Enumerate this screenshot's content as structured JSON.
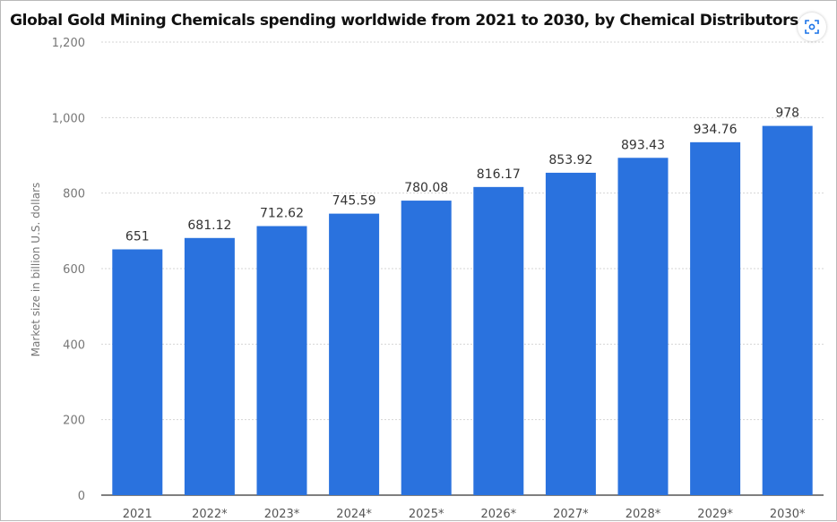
{
  "chart_data": {
    "type": "bar",
    "title": "Global Gold Mining Chemicals spending worldwide from 2021 to 2030, by Chemical Distributors",
    "xlabel": "",
    "ylabel": "Market size in billion U.S. dollars",
    "categories": [
      "2021",
      "2022*",
      "2023*",
      "2024*",
      "2025*",
      "2026*",
      "2027*",
      "2028*",
      "2029*",
      "2030*"
    ],
    "values": [
      651,
      681.12,
      712.62,
      745.59,
      780.08,
      816.17,
      853.92,
      893.43,
      934.76,
      978
    ],
    "value_labels": [
      "651",
      "681.12",
      "712.62",
      "745.59",
      "780.08",
      "816.17",
      "853.92",
      "893.43",
      "934.76",
      "978"
    ],
    "ylim": [
      0,
      1200
    ],
    "yticks": [
      0,
      200,
      400,
      600,
      800,
      1000,
      1200
    ],
    "ytick_labels": [
      "0",
      "200",
      "400",
      "600",
      "800",
      "1,000",
      "1,200"
    ],
    "grid": true,
    "legend": "none",
    "bar_color": "#2a72de"
  },
  "toolbar": {
    "lens_icon": "lens-search-icon"
  }
}
